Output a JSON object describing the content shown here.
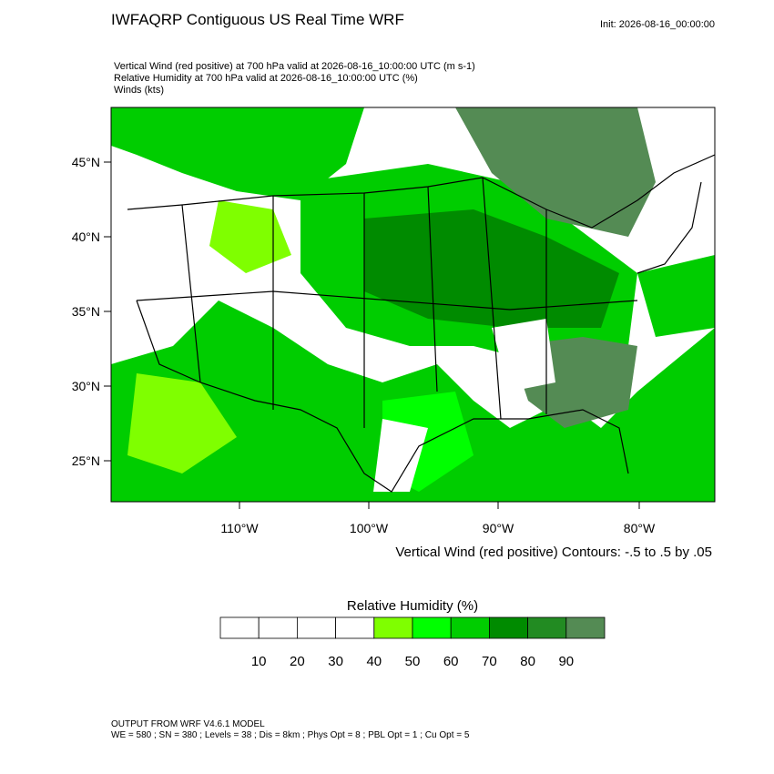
{
  "header": {
    "title": "IWFAQRP Contiguous US Real Time WRF",
    "init": "Init: 2026-08-16_00:00:00"
  },
  "fields": [
    "Vertical Wind (red positive) at 700 hPa valid at 2026-08-16_10:00:00 UTC   (m s-1)",
    "Relative Humidity at 700 hPa valid at 2026-08-16_10:00:00 UTC   (%)",
    "Winds   (kts)"
  ],
  "map": {
    "lat_labels": [
      "45°N",
      "40°N",
      "35°N",
      "30°N",
      "25°N"
    ],
    "lon_labels": [
      "110°W",
      "100°W",
      "90°W",
      "80°W"
    ],
    "contour_note": "Vertical Wind (red positive) Contours: -.5 to .5 by .05"
  },
  "colorbar": {
    "title": "Relative Humidity  (%)",
    "labels": [
      10,
      20,
      30,
      40,
      50,
      60,
      70,
      80,
      90
    ],
    "colors": [
      "#ffffff",
      "#ffffff",
      "#ffffff",
      "#ffffff",
      "#7fff00",
      "#00ff00",
      "#00cd00",
      "#008b00",
      "#228b22",
      "#548b54"
    ]
  },
  "footer": [
    "OUTPUT FROM WRF V4.6.1 MODEL",
    "WE = 580 ; SN = 380 ; Levels = 38 ; Dis = 8km ; Phys Opt = 8 ; PBL Opt = 1 ; Cu Opt = 5"
  ]
}
